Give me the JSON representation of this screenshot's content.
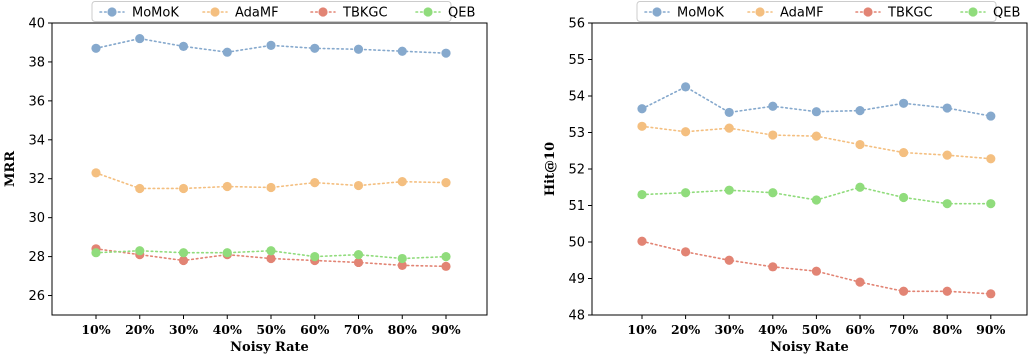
{
  "colors": {
    "MoMoK": "#86a9cd",
    "AdaMF": "#f4bf80",
    "TBKGC": "#e28474",
    "QEB": "#90dc7c"
  },
  "chart_data": [
    {
      "type": "line",
      "xlabel": "Noisy Rate",
      "ylabel": "MRR",
      "categories": [
        "10%",
        "20%",
        "30%",
        "40%",
        "50%",
        "60%",
        "70%",
        "80%",
        "90%"
      ],
      "ylim": [
        25,
        40
      ],
      "yticks": [
        26,
        28,
        30,
        32,
        34,
        36,
        38,
        40
      ],
      "legend_position": "top-center",
      "series": [
        {
          "name": "MoMoK",
          "values": [
            38.7,
            39.2,
            38.8,
            38.5,
            38.85,
            38.7,
            38.65,
            38.55,
            38.45
          ]
        },
        {
          "name": "AdaMF",
          "values": [
            32.3,
            31.5,
            31.5,
            31.6,
            31.55,
            31.8,
            31.65,
            31.85,
            31.8
          ]
        },
        {
          "name": "TBKGC",
          "values": [
            28.4,
            28.1,
            27.8,
            28.1,
            27.9,
            27.8,
            27.7,
            27.55,
            27.5
          ]
        },
        {
          "name": "QEB",
          "values": [
            28.2,
            28.3,
            28.2,
            28.2,
            28.3,
            28.0,
            28.1,
            27.9,
            28.0
          ]
        }
      ]
    },
    {
      "type": "line",
      "xlabel": "Noisy Rate",
      "ylabel": "Hit@10",
      "categories": [
        "10%",
        "20%",
        "30%",
        "40%",
        "50%",
        "60%",
        "70%",
        "80%",
        "90%"
      ],
      "ylim": [
        48,
        56
      ],
      "yticks": [
        48,
        49,
        50,
        51,
        52,
        53,
        54,
        55,
        56
      ],
      "legend_position": "top-center",
      "series": [
        {
          "name": "MoMoK",
          "values": [
            53.65,
            54.25,
            53.55,
            53.72,
            53.57,
            53.6,
            53.8,
            53.67,
            53.45
          ]
        },
        {
          "name": "AdaMF",
          "values": [
            53.17,
            53.02,
            53.12,
            52.93,
            52.9,
            52.67,
            52.45,
            52.38,
            52.28
          ]
        },
        {
          "name": "TBKGC",
          "values": [
            50.02,
            49.73,
            49.5,
            49.32,
            49.2,
            48.9,
            48.65,
            48.65,
            48.58
          ]
        },
        {
          "name": "QEB",
          "values": [
            51.3,
            51.35,
            51.42,
            51.35,
            51.15,
            51.5,
            51.22,
            51.05,
            51.05
          ]
        }
      ]
    }
  ]
}
